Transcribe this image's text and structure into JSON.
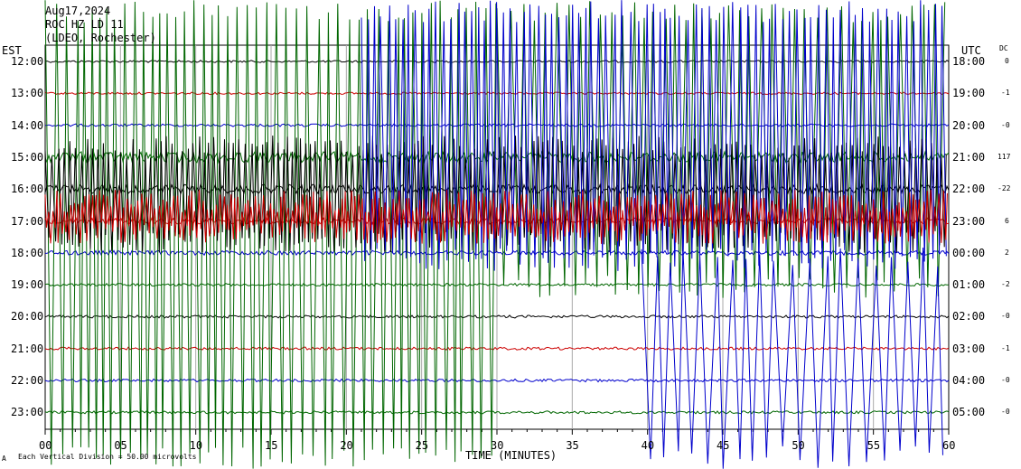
{
  "header": {
    "date": "Aug17,2024",
    "station": "ROC HZ LD 11",
    "location": "(LDEO, Rochester)"
  },
  "chart_data": {
    "type": "line",
    "left_axis_label": "EST",
    "right_axis_label": "UTC",
    "dc_label": "DC",
    "xlabel": "TIME (MINUTES)",
    "xlim": [
      0,
      60
    ],
    "x_ticks": [
      "00",
      "05",
      "10",
      "15",
      "20",
      "25",
      "30",
      "35",
      "40",
      "45",
      "50",
      "55",
      "60"
    ],
    "footer_note": "Each Vertical Division = 50.00 microvolts",
    "rows": [
      {
        "est": "12:00",
        "utc": "18:00",
        "dc": "0",
        "color": "#000000",
        "amplitude": 1.2
      },
      {
        "est": "13:00",
        "utc": "19:00",
        "dc": "-1",
        "color": "#cc0000",
        "amplitude": 1.2
      },
      {
        "est": "14:00",
        "utc": "20:00",
        "dc": "-0",
        "color": "#0000cc",
        "amplitude": 1.5
      },
      {
        "est": "15:00",
        "utc": "21:00",
        "dc": "117",
        "color": "#006600",
        "amplitude": 6.0
      },
      {
        "est": "16:00",
        "utc": "22:00",
        "dc": "-22",
        "color": "#000000",
        "amplitude": 5.0
      },
      {
        "est": "17:00",
        "utc": "23:00",
        "dc": "6",
        "color": "#cc0000",
        "amplitude": 3.5
      },
      {
        "est": "18:00",
        "utc": "00:00",
        "dc": "2",
        "color": "#0000cc",
        "amplitude": 2.5
      },
      {
        "est": "19:00",
        "utc": "01:00",
        "dc": "-2",
        "color": "#006600",
        "amplitude": 1.5
      },
      {
        "est": "20:00",
        "utc": "02:00",
        "dc": "-0",
        "color": "#000000",
        "amplitude": 1.5
      },
      {
        "est": "21:00",
        "utc": "03:00",
        "dc": "-1",
        "color": "#cc0000",
        "amplitude": 1.5
      },
      {
        "est": "22:00",
        "utc": "04:00",
        "dc": "-0",
        "color": "#0000cc",
        "amplitude": 1.5
      },
      {
        "est": "23:00",
        "utc": "05:00",
        "dc": "-0",
        "color": "#006600",
        "amplitude": 1.5
      }
    ]
  }
}
